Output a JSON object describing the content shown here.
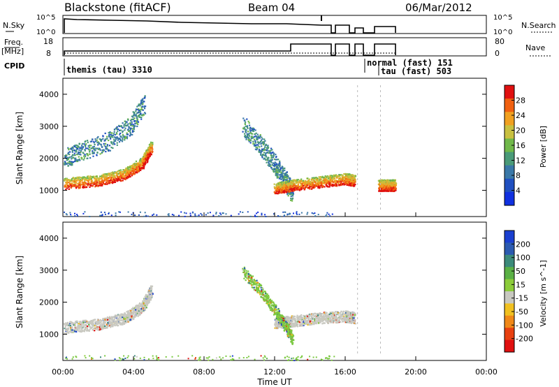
{
  "header": {
    "station": "Blackstone (fitACF)",
    "beam": "Beam 04",
    "date": "06/Mar/2012"
  },
  "panels": {
    "nsky": {
      "label": "N.Sky",
      "ticks_left": [
        "10^5",
        "10^0"
      ],
      "ticks_right": [
        "10^5",
        "10^0"
      ],
      "right_label": "N.Search"
    },
    "freq": {
      "label_top": "Freq.",
      "label_bottom": "[MHz]",
      "ticks_left": [
        "18",
        "8"
      ],
      "ticks_right": [
        "80",
        "0"
      ],
      "right_label": "Nave"
    },
    "cpid": {
      "label": "CPID",
      "entries": [
        {
          "text": "themis (tau) 3310"
        },
        {
          "text": "normal (fast) 151"
        },
        {
          "text": "tau (fast) 503"
        }
      ]
    }
  },
  "chart_data": [
    {
      "type": "heatmap",
      "title": "",
      "xlabel": "",
      "ylabel": "Slant Range [km]",
      "xlim": [
        0,
        24
      ],
      "ylim": [
        180,
        4500
      ],
      "y_ticks": [
        "1000",
        "2000",
        "3000",
        "4000"
      ],
      "colorbar": {
        "label": "Power [dB]",
        "ticks": [
          "4",
          "8",
          "12",
          "16",
          "20",
          "24",
          "28"
        ],
        "range": [
          0,
          30
        ],
        "colors": [
          "#1030e0",
          "#2050c0",
          "#3a78a8",
          "#4a9a78",
          "#70b84a",
          "#c8c040",
          "#f0a020",
          "#f06010",
          "#e01010"
        ]
      },
      "scatter_bands": [
        {
          "x": [
            0.0,
            2.0,
            3.5,
            4.5,
            5.0
          ],
          "y": [
            1150,
            1250,
            1450,
            1800,
            2300
          ],
          "level": "high"
        },
        {
          "x": [
            0.0,
            1.0,
            2.5,
            3.8,
            4.6
          ],
          "y": [
            1900,
            2100,
            2400,
            2900,
            3600
          ],
          "level": "low"
        },
        {
          "x": [
            10.2,
            11.2,
            12.0,
            12.6,
            13.0
          ],
          "y": [
            2900,
            2300,
            1700,
            1200,
            800
          ],
          "level": "low"
        },
        {
          "x": [
            12.0,
            13.0,
            14.5,
            16.0,
            16.5
          ],
          "y": [
            1000,
            1100,
            1200,
            1300,
            1250
          ],
          "level": "high"
        },
        {
          "x": [
            17.9,
            18.8
          ],
          "y": [
            1100,
            1100
          ],
          "level": "high"
        }
      ]
    },
    {
      "type": "heatmap",
      "title": "",
      "xlabel": "Time UT",
      "ylabel": "Slant Range [km]",
      "xlim": [
        0,
        24
      ],
      "ylim": [
        180,
        4500
      ],
      "x_ticks": [
        "00:00",
        "04:00",
        "08:00",
        "12:00",
        "16:00",
        "20:00",
        "00:00"
      ],
      "y_ticks": [
        "1000",
        "2000",
        "3000",
        "4000"
      ],
      "colorbar": {
        "label": "Velocity [m s^-1]",
        "ticks": [
          "200",
          "100",
          "50",
          "15",
          "-15",
          "-50",
          "-100",
          "-200"
        ],
        "range": [
          -250,
          250
        ],
        "colors": [
          "#1a3fd0",
          "#2b5ab0",
          "#3c8a7a",
          "#5ab045",
          "#8ccc3a",
          "#c8c8c0",
          "#f0c020",
          "#f08818",
          "#e84010",
          "#e01010"
        ]
      },
      "scatter_bands": [
        {
          "x": [
            0.0,
            2.0,
            3.5,
            4.5,
            5.0
          ],
          "y": [
            1150,
            1250,
            1450,
            1800,
            2300
          ],
          "level": "ground"
        },
        {
          "x": [
            12.0,
            13.0,
            14.5,
            16.0,
            16.5
          ],
          "y": [
            1300,
            1350,
            1450,
            1500,
            1450
          ],
          "level": "ground"
        },
        {
          "x": [
            10.2,
            11.2,
            12.0,
            12.6,
            13.0
          ],
          "y": [
            2900,
            2300,
            1700,
            1200,
            800
          ],
          "level": "ionosphere"
        }
      ]
    }
  ]
}
